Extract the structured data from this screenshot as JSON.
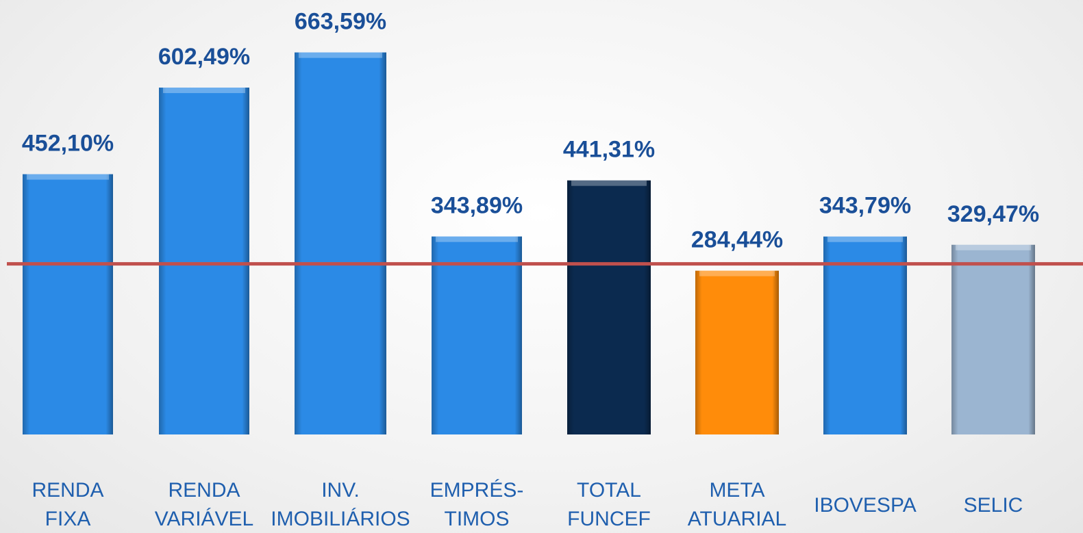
{
  "chart_data": {
    "type": "bar",
    "categories": [
      [
        "RENDA",
        "FIXA"
      ],
      [
        "RENDA",
        "VARIÁVEL"
      ],
      [
        "INV.",
        "IMOBILIÁRIOS"
      ],
      [
        "EMPRÉS-",
        "TIMOS"
      ],
      [
        "TOTAL",
        "FUNCEF"
      ],
      [
        "META",
        "ATUARIAL"
      ],
      [
        "IBOVESPA"
      ],
      [
        "SELIC"
      ]
    ],
    "values": [
      452.1,
      602.49,
      663.59,
      343.89,
      441.31,
      284.44,
      343.79,
      329.47
    ],
    "value_labels": [
      "452,10%",
      "602,49%",
      "663,59%",
      "343,89%",
      "441,31%",
      "284,44%",
      "343,79%",
      "329,47%"
    ],
    "colors": [
      "#2b8ae6",
      "#2b8ae6",
      "#2b8ae6",
      "#2b8ae6",
      "#0b2a4f",
      "#ff8c0a",
      "#2b8ae6",
      "#9bb5d1"
    ],
    "ylim": [
      0,
      700
    ],
    "reference_line_color": "#c0504d"
  }
}
